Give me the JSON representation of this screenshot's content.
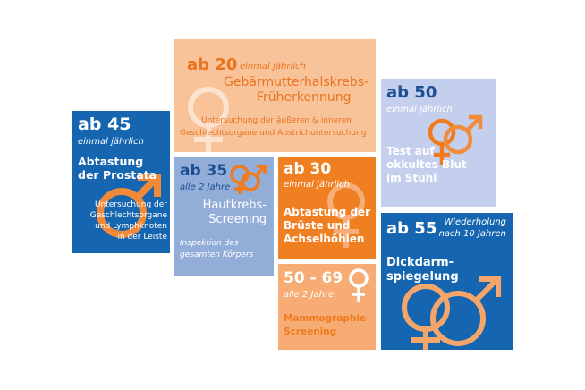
{
  "colors": {
    "dark_blue": "#1565b0",
    "light_blue": "#93add9",
    "pale_blue": "#c3cfec",
    "orange": "#f07f22",
    "light_orange": "#f6ac74",
    "peach": "#f9c39a"
  },
  "cards": {
    "ab45": {
      "age": "ab 45",
      "frequency": "einmal jährlich",
      "title": [
        "Abtastung",
        "der Prostata"
      ],
      "description": [
        "Untersuchung der",
        "Geschlechtsorgane",
        "und Lymphknoten",
        "in der Leiste"
      ],
      "icon": "male-symbol-icon"
    },
    "ab20": {
      "age": "ab 20",
      "frequency": "einmal jährlich",
      "title": [
        "Gebärmutterhalskrebs-",
        "Früherkennung"
      ],
      "description": [
        "Untersuchung der äußeren & inneren",
        "Geschlechtsorgane und Abstrichuntersuchung"
      ],
      "icon": "female-symbol-icon"
    },
    "ab35": {
      "age": "ab 35",
      "frequency": "alle 2 Jahre",
      "title": [
        "Hautkrebs-",
        "Screening"
      ],
      "description": [
        "Inspektion des",
        "gesamten Körpers"
      ],
      "icon": "male-female-symbol-icon"
    },
    "ab30": {
      "age": "ab 30",
      "frequency": "einmal jährlich",
      "title": [
        "Abtastung der",
        "Brüste und",
        "Achselhöhlen"
      ],
      "icon": "female-symbol-icon"
    },
    "ab50": {
      "age": "ab 50",
      "frequency": "einmal jährlich",
      "title": [
        "Test auf",
        "okkultes Blut",
        "im Stuhl"
      ],
      "icon": "male-female-symbol-icon"
    },
    "ab55": {
      "age": "ab 55",
      "frequency": [
        "Wiederholung",
        "nach 10 Jahren"
      ],
      "title": [
        "Dickdarm-",
        "spiegelung"
      ],
      "icon": "male-female-symbol-icon"
    },
    "mammo": {
      "age": "50 - 69",
      "frequency": "alle 2 Jahre",
      "title": [
        "Mammographie-",
        "Screening"
      ],
      "icon": "female-symbol-icon"
    }
  }
}
